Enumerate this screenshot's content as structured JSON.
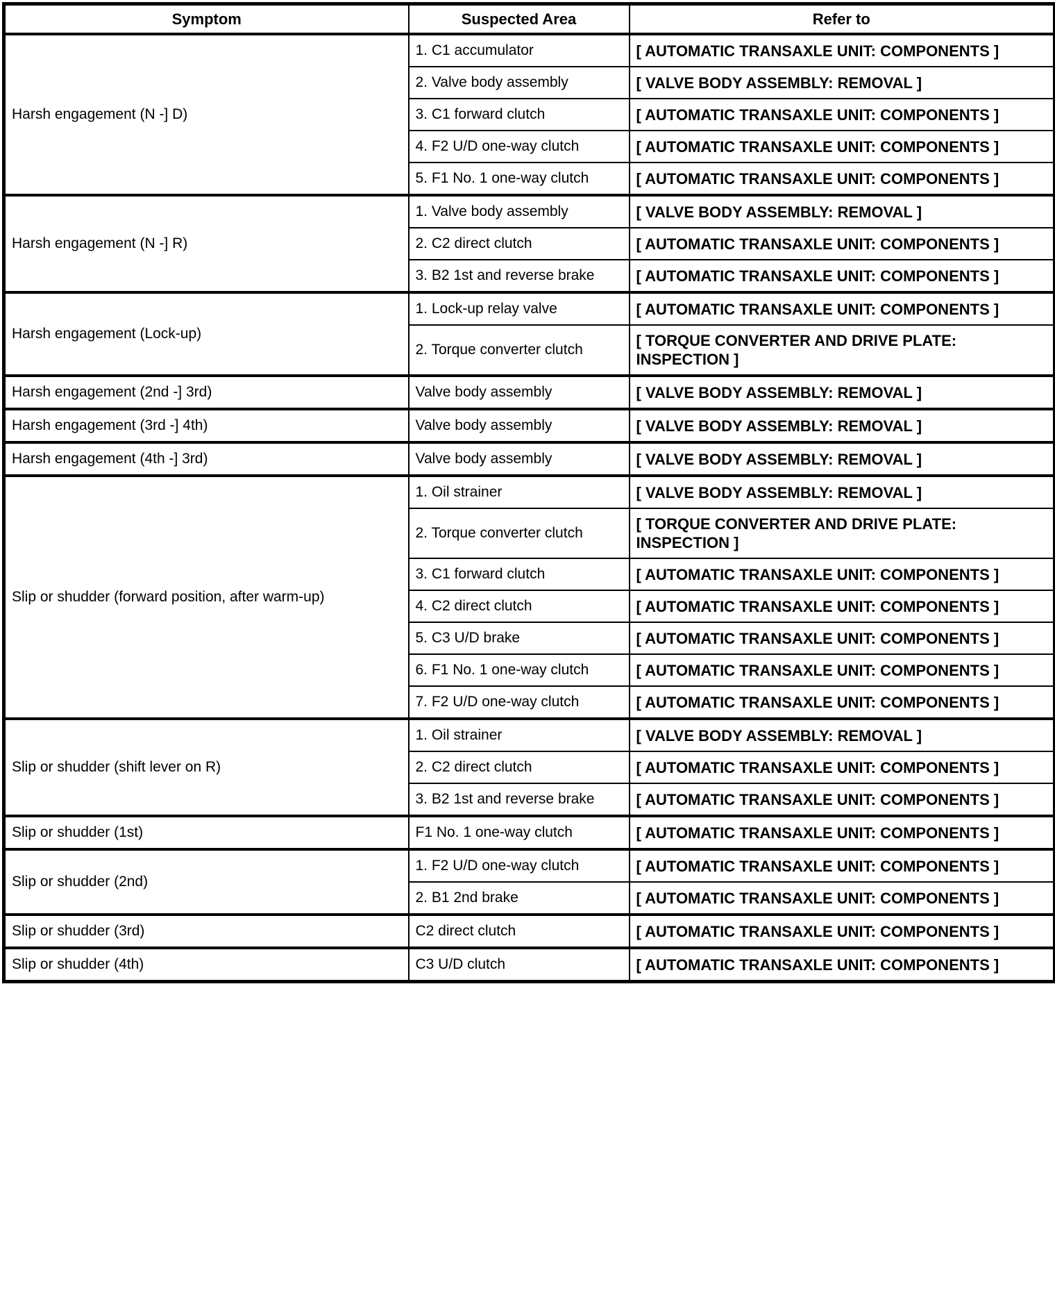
{
  "colors": {
    "border": "#000000",
    "background": "#ffffff",
    "text": "#000000"
  },
  "table": {
    "headers": [
      "Symptom",
      "Suspected Area",
      "Refer to"
    ],
    "sections": [
      {
        "symptom": "Harsh engagement (N -] D)",
        "rows": [
          {
            "area": "1. C1 accumulator",
            "refer": "[ AUTOMATIC TRANSAXLE UNIT: COMPONENTS ]"
          },
          {
            "area": "2. Valve body assembly",
            "refer": "[ VALVE BODY ASSEMBLY: REMOVAL ]"
          },
          {
            "area": "3. C1 forward clutch",
            "refer": "[ AUTOMATIC TRANSAXLE UNIT: COMPONENTS ]"
          },
          {
            "area": "4. F2 U/D one-way clutch",
            "refer": "[ AUTOMATIC TRANSAXLE UNIT: COMPONENTS ]"
          },
          {
            "area": "5. F1 No. 1 one-way clutch",
            "refer": "[ AUTOMATIC TRANSAXLE UNIT: COMPONENTS ]"
          }
        ]
      },
      {
        "symptom": "Harsh engagement (N -] R)",
        "rows": [
          {
            "area": "1. Valve body assembly",
            "refer": "[ VALVE BODY ASSEMBLY: REMOVAL ]"
          },
          {
            "area": "2. C2 direct clutch",
            "refer": "[ AUTOMATIC TRANSAXLE UNIT: COMPONENTS ]"
          },
          {
            "area": "3. B2 1st and reverse brake",
            "refer": "[ AUTOMATIC TRANSAXLE UNIT: COMPONENTS ]"
          }
        ]
      },
      {
        "symptom": "Harsh engagement (Lock-up)",
        "rows": [
          {
            "area": "1. Lock-up relay valve",
            "refer": "[ AUTOMATIC TRANSAXLE UNIT: COMPONENTS ]"
          },
          {
            "area": "2. Torque converter clutch",
            "refer": "[ TORQUE CONVERTER AND DRIVE PLATE: INSPECTION ]"
          }
        ]
      },
      {
        "symptom": "Harsh engagement (2nd -] 3rd)",
        "rows": [
          {
            "area": "Valve body assembly",
            "refer": "[ VALVE BODY ASSEMBLY: REMOVAL ]"
          }
        ]
      },
      {
        "symptom": "Harsh engagement (3rd -] 4th)",
        "rows": [
          {
            "area": "Valve body assembly",
            "refer": "[ VALVE BODY ASSEMBLY: REMOVAL ]"
          }
        ]
      },
      {
        "symptom": "Harsh engagement (4th -] 3rd)",
        "rows": [
          {
            "area": "Valve body assembly",
            "refer": "[ VALVE BODY ASSEMBLY: REMOVAL ]"
          }
        ]
      },
      {
        "symptom": "Slip or shudder (forward position, after warm-up)",
        "rows": [
          {
            "area": "1. Oil strainer",
            "refer": "[ VALVE BODY ASSEMBLY: REMOVAL ]"
          },
          {
            "area": "2. Torque converter clutch",
            "refer": "[ TORQUE CONVERTER AND DRIVE PLATE: INSPECTION ]"
          },
          {
            "area": "3. C1 forward clutch",
            "refer": "[ AUTOMATIC TRANSAXLE UNIT: COMPONENTS ]"
          },
          {
            "area": "4. C2 direct clutch",
            "refer": "[ AUTOMATIC TRANSAXLE UNIT: COMPONENTS ]"
          },
          {
            "area": "5. C3 U/D brake",
            "refer": "[ AUTOMATIC TRANSAXLE UNIT: COMPONENTS ]"
          },
          {
            "area": "6. F1 No. 1 one-way clutch",
            "refer": "[ AUTOMATIC TRANSAXLE UNIT: COMPONENTS ]"
          },
          {
            "area": "7. F2 U/D one-way clutch",
            "refer": "[ AUTOMATIC TRANSAXLE UNIT: COMPONENTS ]"
          }
        ]
      },
      {
        "symptom": "Slip or shudder (shift lever on R)",
        "rows": [
          {
            "area": "1. Oil strainer",
            "refer": "[ VALVE BODY ASSEMBLY: REMOVAL ]"
          },
          {
            "area": "2. C2 direct clutch",
            "refer": "[ AUTOMATIC TRANSAXLE UNIT: COMPONENTS ]"
          },
          {
            "area": "3. B2 1st and reverse brake",
            "refer": "[ AUTOMATIC TRANSAXLE UNIT: COMPONENTS ]"
          }
        ]
      },
      {
        "symptom": "Slip or shudder (1st)",
        "rows": [
          {
            "area": "F1 No. 1 one-way clutch",
            "refer": "[ AUTOMATIC TRANSAXLE UNIT: COMPONENTS ]"
          }
        ]
      },
      {
        "symptom": "Slip or shudder (2nd)",
        "rows": [
          {
            "area": "1. F2 U/D one-way clutch",
            "refer": "[ AUTOMATIC TRANSAXLE UNIT: COMPONENTS ]"
          },
          {
            "area": "2. B1 2nd brake",
            "refer": "[ AUTOMATIC TRANSAXLE UNIT: COMPONENTS ]"
          }
        ]
      },
      {
        "symptom": "Slip or shudder (3rd)",
        "rows": [
          {
            "area": "C2 direct clutch",
            "refer": "[ AUTOMATIC TRANSAXLE UNIT: COMPONENTS ]"
          }
        ]
      },
      {
        "symptom": "Slip or shudder (4th)",
        "rows": [
          {
            "area": "C3 U/D clutch",
            "refer": "[ AUTOMATIC TRANSAXLE UNIT: COMPONENTS ]"
          }
        ]
      }
    ]
  }
}
